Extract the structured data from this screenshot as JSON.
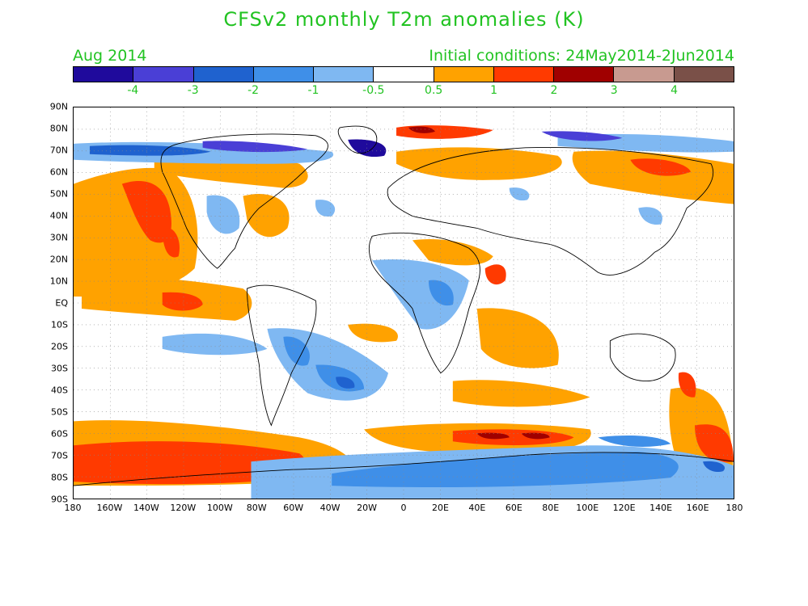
{
  "title": "CFSv2 monthly T2m anomalies (K)",
  "valid_month": "Aug 2014",
  "initial_conditions": "Initial conditions: 24May2014-2Jun2014",
  "colorbar": {
    "colors": [
      "#1f0a9c",
      "#4a3fd6",
      "#1f62cf",
      "#3f8fe8",
      "#7fb8f2",
      "#ffffff",
      "#ffa200",
      "#ff3a00",
      "#a00000",
      "#c89a90",
      "#7a5048"
    ],
    "labels": [
      "-4",
      "-3",
      "-2",
      "-1",
      "-0.5",
      "0.5",
      "1",
      "2",
      "3",
      "4"
    ]
  },
  "axes": {
    "lat_labels": [
      "90N",
      "80N",
      "70N",
      "60N",
      "50N",
      "40N",
      "30N",
      "20N",
      "10N",
      "EQ",
      "10S",
      "20S",
      "30S",
      "40S",
      "50S",
      "60S",
      "70S",
      "80S",
      "90S"
    ],
    "lon_labels": [
      "180",
      "160W",
      "140W",
      "120W",
      "100W",
      "80W",
      "60W",
      "40W",
      "20W",
      "0",
      "20E",
      "40E",
      "60E",
      "80E",
      "100E",
      "120E",
      "140E",
      "160E",
      "180"
    ]
  },
  "legend_colors": {
    "orange": "#ffa200",
    "red": "#ff3a00",
    "darkred": "#a00000",
    "lightblue": "#7fb8f2",
    "midblue": "#3f8fe8",
    "blue": "#1f62cf",
    "violet": "#4a3fd6",
    "darkviolet": "#1f0a9c"
  }
}
